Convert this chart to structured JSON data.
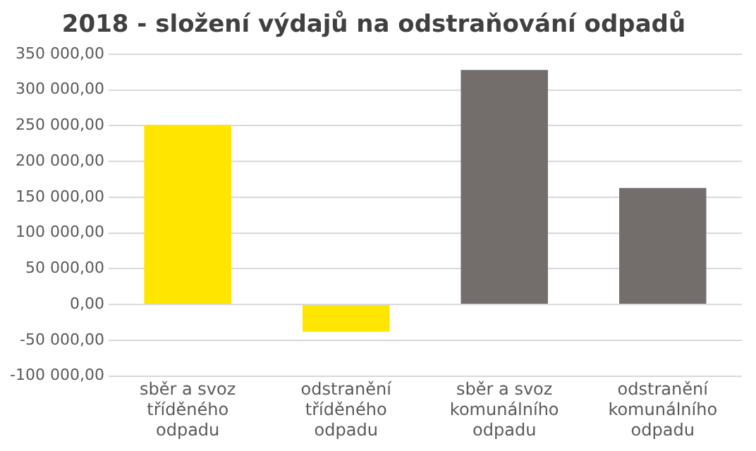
{
  "chart_data": {
    "type": "bar",
    "title": "2018 - složení výdajů na odstraňování odpadů",
    "categories": [
      "sběr a svoz tříděného odpadu",
      "odstranění tříděného odpadu",
      "sběr a svoz komunálního odpadu",
      "odstranění komunálního odpadu"
    ],
    "values": [
      251000,
      -38000,
      328000,
      163000
    ],
    "colors": [
      "#ffe600",
      "#ffe600",
      "#736e6c",
      "#736e6c"
    ],
    "ylim": [
      -100000,
      350000
    ],
    "yticks": [
      {
        "value": -100000,
        "label": "-100 000,00"
      },
      {
        "value": -50000,
        "label": "-50 000,00"
      },
      {
        "value": 0,
        "label": "0,00"
      },
      {
        "value": 50000,
        "label": "50 000,00"
      },
      {
        "value": 100000,
        "label": "100 000,00"
      },
      {
        "value": 150000,
        "label": "150 000,00"
      },
      {
        "value": 200000,
        "label": "200 000,00"
      },
      {
        "value": 250000,
        "label": "250 000,00"
      },
      {
        "value": 300000,
        "label": "300 000,00"
      },
      {
        "value": 350000,
        "label": "350 000,00"
      }
    ],
    "grid": "y",
    "legend": false
  }
}
